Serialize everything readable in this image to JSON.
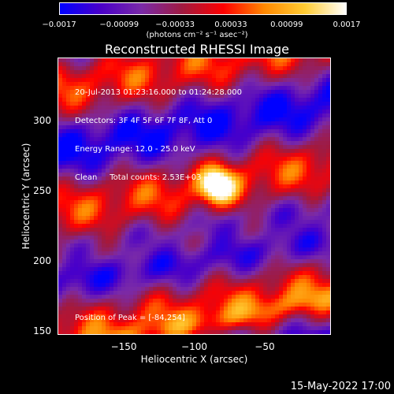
{
  "chart_data": {
    "type": "heatmap",
    "title": "Reconstructed RHESSI Image",
    "xlabel": "Heliocentric X (arcsec)",
    "ylabel": "Heliocentric Y (arcsec)",
    "xlim": [
      -197,
      -3
    ],
    "ylim": [
      147,
      345
    ],
    "x_ticks": [
      -150,
      -100,
      -50
    ],
    "x_tick_labels": [
      "−150",
      "−100",
      "−50"
    ],
    "y_ticks": [
      150,
      200,
      250,
      300
    ],
    "y_tick_labels": [
      "150",
      "200",
      "250",
      "300"
    ],
    "colorbar": {
      "ticks": [
        -0.0017,
        -0.00099,
        -0.00033,
        0.00033,
        0.00099,
        0.0017
      ],
      "tick_labels": [
        "−0.0017",
        "−0.00099",
        "−0.00033",
        "0.00033",
        "0.00099",
        "0.0017"
      ],
      "units": "(photons cm⁻² s⁻¹ asec⁻²)"
    },
    "peak": {
      "x": -84,
      "y": 254
    },
    "annotations": [
      "20-Jul-2013 01:23:16.000 to 01:24:28.000",
      "Detectors: 3F 4F 5F 6F 7F 8F, Att 0",
      "Energy Range: 12.0 - 25.0 keV",
      "Clean     Total counts: 2.53E+03"
    ],
    "peak_label": "Position of Peak = [-84,254]"
  },
  "footer": "15-May-2022 17:00",
  "colors": {
    "background": "#000000",
    "colormap": [
      "#0000ff",
      "#4a00c8",
      "#7a2aa8",
      "#a01a40",
      "#ff0000",
      "#ff8800",
      "#ffcc33",
      "#ffffff"
    ]
  }
}
